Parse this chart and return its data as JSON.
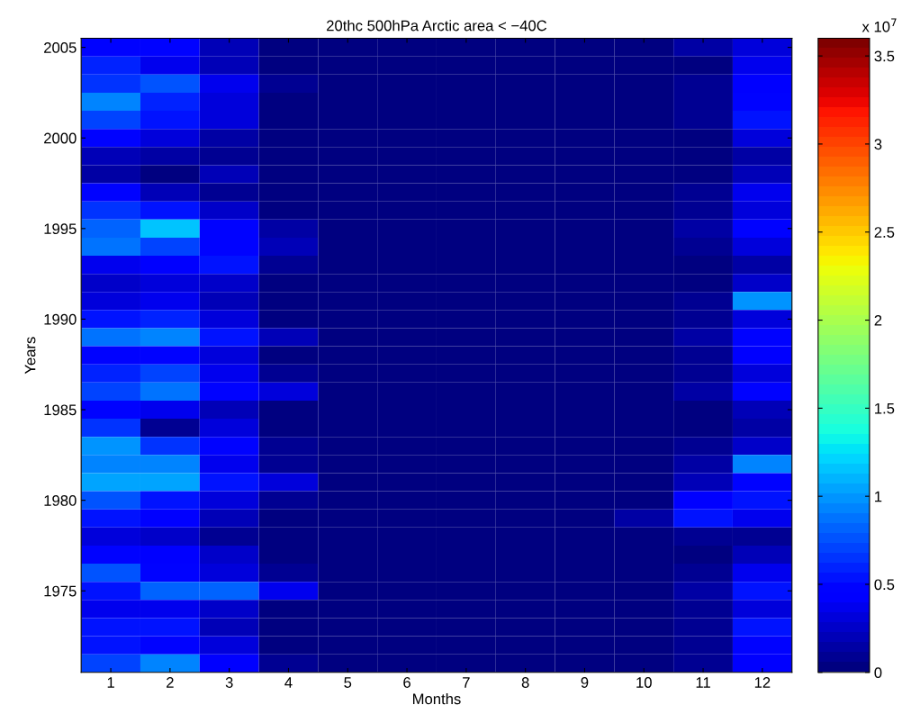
{
  "chart_data": {
    "type": "heatmap",
    "title": "20thc 500hPa Arctic area < −40C",
    "xlabel": "Months",
    "ylabel": "Years",
    "clabel": "x 10$^{7}$",
    "categories": [
      "1",
      "2",
      "3",
      "4",
      "5",
      "6",
      "7",
      "8",
      "9",
      "10",
      "11",
      "12"
    ],
    "y_categories": [
      "2005",
      null,
      null,
      null,
      null,
      "2000",
      null,
      null,
      null,
      null,
      "1995",
      null,
      null,
      null,
      null,
      "1990",
      null,
      null,
      null,
      null,
      "1985",
      null,
      null,
      null,
      null,
      "1980",
      null,
      null,
      null,
      null,
      "1975",
      null,
      null,
      null,
      null
    ],
    "cells": [
      [
        0.5,
        0.45,
        0.2,
        0.05,
        0,
        0,
        0,
        0,
        0,
        0,
        0.15,
        0.3
      ],
      [
        0.6,
        0.35,
        0.2,
        0.05,
        0,
        0,
        0,
        0,
        0,
        0,
        0.05,
        0.35
      ],
      [
        0.65,
        0.75,
        0.35,
        0.1,
        0,
        0,
        0,
        0,
        0,
        0,
        0.1,
        0.4
      ],
      [
        0.95,
        0.6,
        0.3,
        0.05,
        0,
        0,
        0,
        0,
        0,
        0,
        0.1,
        0.5
      ],
      [
        0.7,
        0.55,
        0.3,
        0.05,
        0,
        0,
        0,
        0,
        0,
        0,
        0.1,
        0.55
      ],
      [
        0.45,
        0.3,
        0.15,
        0.05,
        0,
        0,
        0,
        0,
        0,
        0,
        0.05,
        0.3
      ],
      [
        0.2,
        0.15,
        0.1,
        0,
        0,
        0,
        0,
        0,
        0,
        0,
        0.05,
        0.15
      ],
      [
        0.15,
        0.05,
        0.2,
        0,
        0,
        0,
        0,
        0,
        0,
        0,
        0.05,
        0.2
      ],
      [
        0.45,
        0.2,
        0.1,
        0,
        0,
        0,
        0,
        0,
        0,
        0,
        0.1,
        0.35
      ],
      [
        0.65,
        0.55,
        0.25,
        0.05,
        0,
        0,
        0,
        0,
        0,
        0,
        0.1,
        0.3
      ],
      [
        0.8,
        1.15,
        0.45,
        0.15,
        0,
        0,
        0,
        0,
        0,
        0,
        0.15,
        0.45
      ],
      [
        0.85,
        0.7,
        0.5,
        0.2,
        0,
        0,
        0,
        0,
        0,
        0,
        0.1,
        0.3
      ],
      [
        0.35,
        0.4,
        0.55,
        0.1,
        0,
        0,
        0,
        0,
        0,
        0,
        0.05,
        0.15
      ],
      [
        0.25,
        0.3,
        0.25,
        0.05,
        0,
        0,
        0,
        0,
        0,
        0,
        0.05,
        0.25
      ],
      [
        0.3,
        0.35,
        0.2,
        0.05,
        0,
        0,
        0,
        0,
        0,
        0,
        0.1,
        1.0
      ],
      [
        0.55,
        0.6,
        0.3,
        0.05,
        0,
        0,
        0,
        0,
        0,
        0,
        0.1,
        0.3
      ],
      [
        0.85,
        0.95,
        0.55,
        0.2,
        0,
        0,
        0,
        0,
        0,
        0,
        0.15,
        0.5
      ],
      [
        0.45,
        0.5,
        0.3,
        0.05,
        0,
        0,
        0,
        0,
        0,
        0,
        0.1,
        0.4
      ],
      [
        0.6,
        0.7,
        0.35,
        0.1,
        0,
        0,
        0,
        0,
        0,
        0,
        0.1,
        0.3
      ],
      [
        0.7,
        0.85,
        0.5,
        0.3,
        0,
        0,
        0,
        0,
        0,
        0,
        0.15,
        0.45
      ],
      [
        0.45,
        0.35,
        0.2,
        0.05,
        0,
        0,
        0,
        0,
        0,
        0,
        0.05,
        0.2
      ],
      [
        0.65,
        0.1,
        0.3,
        0.05,
        0,
        0,
        0,
        0,
        0,
        0,
        0.05,
        0.15
      ],
      [
        1.0,
        0.65,
        0.45,
        0.1,
        0,
        0,
        0,
        0,
        0,
        0,
        0.1,
        0.25
      ],
      [
        0.95,
        0.9,
        0.35,
        0.1,
        0,
        0,
        0,
        0,
        0,
        0,
        0.15,
        0.9
      ],
      [
        1.05,
        1.05,
        0.55,
        0.3,
        0,
        0,
        0,
        0,
        0,
        0,
        0.2,
        0.45
      ],
      [
        0.75,
        0.55,
        0.3,
        0.1,
        0,
        0,
        0,
        0,
        0,
        0.05,
        0.4,
        0.55
      ],
      [
        0.55,
        0.4,
        0.2,
        0.05,
        0,
        0,
        0,
        0,
        0,
        0.15,
        0.55,
        0.35
      ],
      [
        0.3,
        0.25,
        0.1,
        0,
        0,
        0,
        0,
        0,
        0,
        0,
        0.1,
        0.1
      ],
      [
        0.5,
        0.4,
        0.25,
        0.05,
        0,
        0,
        0,
        0,
        0,
        0,
        0.05,
        0.2
      ],
      [
        0.75,
        0.45,
        0.3,
        0.1,
        0,
        0,
        0,
        0,
        0,
        0,
        0.1,
        0.35
      ],
      [
        0.55,
        0.8,
        0.8,
        0.35,
        0,
        0,
        0,
        0,
        0,
        0,
        0.15,
        0.55
      ],
      [
        0.35,
        0.35,
        0.25,
        0.05,
        0,
        0,
        0,
        0,
        0,
        0,
        0.1,
        0.3
      ],
      [
        0.55,
        0.55,
        0.2,
        0.05,
        0,
        0,
        0,
        0,
        0,
        0,
        0.1,
        0.55
      ],
      [
        0.55,
        0.45,
        0.3,
        0.05,
        0,
        0,
        0,
        0,
        0,
        0,
        0.1,
        0.45
      ],
      [
        0.7,
        0.9,
        0.4,
        0.1,
        0,
        0,
        0,
        0,
        0,
        0,
        0.1,
        0.4
      ]
    ],
    "clim": [
      0,
      3.6
    ],
    "cticks": [
      0,
      0.5,
      1,
      1.5,
      2,
      2.5,
      3,
      3.5
    ]
  }
}
